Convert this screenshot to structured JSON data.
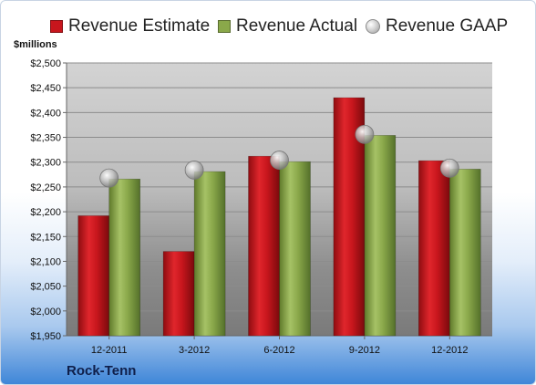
{
  "units_label": "$millions",
  "company": "Rock-Tenn",
  "colors": {
    "estimate": "#c8161d",
    "actual": "#8aa84a",
    "gaap": "#b4b4b4"
  },
  "chart_data": {
    "type": "bar",
    "categories": [
      "12-2011",
      "3-2012",
      "6-2012",
      "9-2012",
      "12-2012"
    ],
    "series": [
      {
        "name": "Revenue Estimate",
        "values": [
          2192,
          2120,
          2312,
          2430,
          2303
        ]
      },
      {
        "name": "Revenue Actual",
        "values": [
          2266,
          2281,
          2301,
          2354,
          2286
        ]
      },
      {
        "name": "Revenue GAAP",
        "values": [
          2268,
          2284,
          2304,
          2356,
          2288
        ]
      }
    ],
    "ylim": [
      1950,
      2500
    ],
    "y_ticks": [
      "$1,950",
      "$2,000",
      "$2,050",
      "$2,100",
      "$2,150",
      "$2,200",
      "$2,250",
      "$2,300",
      "$2,350",
      "$2,400",
      "$2,450",
      "$2,500"
    ],
    "grid": true,
    "legend": "top"
  }
}
